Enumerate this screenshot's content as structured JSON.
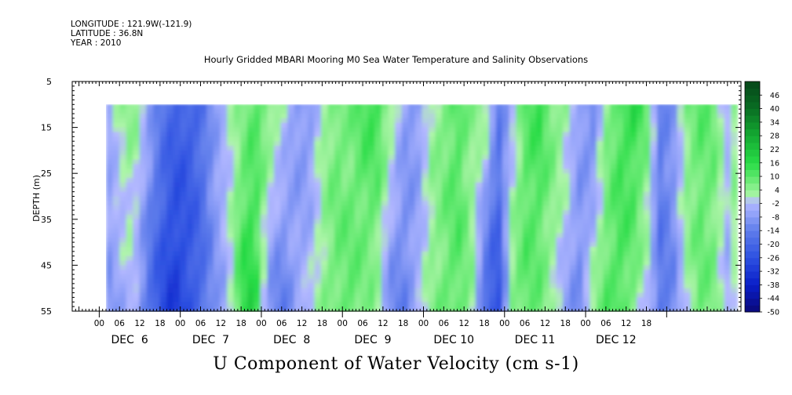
{
  "header": {
    "longitude": "LONGITUDE : 121.9W(-121.9)",
    "latitude": "LATITUDE : 36.8N",
    "year": "YEAR : 2010"
  },
  "chart_data": {
    "type": "heatmap",
    "title": "Hourly Gridded MBARI Mooring M0 Sea Water Temperature and Salinity Observations",
    "bottom_title": "U Component of Water Velocity (cm s-1)",
    "ylabel": "DEPTH (m)",
    "ylim": [
      55,
      5
    ],
    "y_ticks": [
      5,
      15,
      25,
      35,
      45,
      55
    ],
    "data_depth_range": [
      10,
      55
    ],
    "x_hour_range": [
      -8,
      190
    ],
    "data_hour_range": [
      2,
      189
    ],
    "hour_tick_labels": [
      "00",
      "06",
      "12",
      "18",
      "00",
      "06",
      "12",
      "18",
      "00",
      "06",
      "12",
      "18",
      "00",
      "06",
      "12",
      "18",
      "00",
      "06",
      "12",
      "18",
      "00",
      "06",
      "12",
      "18",
      "00",
      "06",
      "12",
      "18"
    ],
    "day_labels": [
      "DEC  6",
      "DEC  7",
      "DEC  8",
      "DEC  9",
      "DEC 10",
      "DEC 11",
      "DEC 12"
    ],
    "colorbar_labels": [
      "46",
      "40",
      "34",
      "28",
      "22",
      "16",
      "10",
      "4",
      "-2",
      "-8",
      "-14",
      "-20",
      "-26",
      "-32",
      "-38",
      "-44",
      "-50"
    ],
    "colorbar_range": [
      -50,
      52
    ],
    "colors": {
      "strong_negative": "#0a12c8",
      "negative": "#5a78e6",
      "weak_negative": "#aab4ff",
      "weak_positive": "#a8f5a0",
      "positive": "#20e040",
      "strong_positive": "#0a8a2a"
    },
    "u_velocity_profile": {
      "hours": [
        2,
        6,
        10,
        14,
        18,
        22,
        26,
        30,
        34,
        38,
        42,
        46,
        50,
        54,
        58,
        62,
        66,
        70,
        74,
        78,
        82,
        86,
        90,
        94,
        98,
        102,
        106,
        110,
        114,
        118,
        122,
        126,
        130,
        134,
        138,
        142,
        146,
        150,
        154,
        158,
        162,
        166,
        170,
        174,
        178,
        182,
        186,
        189
      ],
      "surface_values": [
        -6,
        2,
        6,
        -4,
        -14,
        -20,
        -22,
        -18,
        -8,
        0,
        4,
        10,
        8,
        2,
        -8,
        -10,
        2,
        8,
        6,
        12,
        14,
        6,
        -6,
        -10,
        2,
        6,
        12,
        4,
        6,
        -14,
        -4,
        10,
        14,
        8,
        4,
        -6,
        -14,
        4,
        12,
        16,
        10,
        -14,
        -8,
        6,
        10,
        8,
        -2,
        8
      ],
      "bottom_values": [
        -10,
        -6,
        -2,
        -16,
        -26,
        -32,
        -26,
        -20,
        -10,
        -4,
        16,
        18,
        -10,
        -16,
        -6,
        -2,
        4,
        8,
        10,
        6,
        4,
        -12,
        -14,
        -4,
        4,
        8,
        10,
        6,
        -20,
        -28,
        6,
        10,
        8,
        2,
        -6,
        -12,
        4,
        10,
        12,
        6,
        -2,
        -16,
        -12,
        2,
        8,
        6,
        -4,
        4
      ]
    }
  }
}
